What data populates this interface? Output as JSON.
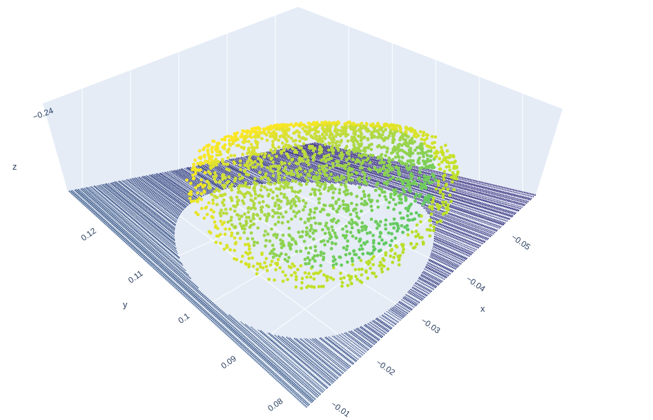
{
  "chart_data": {
    "type": "scatter3d",
    "title": "",
    "colorscale": "viridis",
    "colors": {
      "pane": "#e5ecf6",
      "gridline": "#ffffff",
      "text": "#2a3f5f"
    },
    "axes": {
      "x": {
        "title": "x",
        "range": [
          -0.058,
          -0.007
        ],
        "ticks": [
          -0.05,
          -0.04,
          -0.03,
          -0.02,
          -0.01
        ],
        "tick_labels": [
          "−0.05",
          "−0.04",
          "−0.03",
          "−0.02",
          "−0.01"
        ]
      },
      "y": {
        "title": "y",
        "range": [
          0.077,
          0.128
        ],
        "ticks": [
          0.08,
          0.09,
          0.1,
          0.11,
          0.12
        ],
        "tick_labels": [
          "0.08",
          "0.09",
          "0.1",
          "0.11",
          "0.12"
        ]
      },
      "z": {
        "title": "z",
        "range": [
          -0.26,
          -0.22
        ],
        "ticks": [
          -0.24
        ],
        "tick_labels": [
          "−0.24"
        ]
      }
    },
    "series": [
      {
        "part": "floor-plane",
        "shape": "square plane with circular hole",
        "x_range": [
          -0.058,
          -0.007
        ],
        "y_range": [
          0.077,
          0.128
        ],
        "z": -0.26,
        "hole_center": [
          -0.03,
          0.1
        ],
        "hole_radius": 0.02,
        "color_range": [
          "#3b2f7f",
          "#3f5e8c"
        ]
      },
      {
        "part": "raised-disc",
        "shape": "domed circular disc",
        "center": [
          -0.031,
          0.097
        ],
        "radius": 0.021,
        "z_range": [
          -0.232,
          -0.222
        ],
        "color_range": [
          "#b5de2b",
          "#fde725",
          "#5ec962"
        ]
      }
    ]
  }
}
